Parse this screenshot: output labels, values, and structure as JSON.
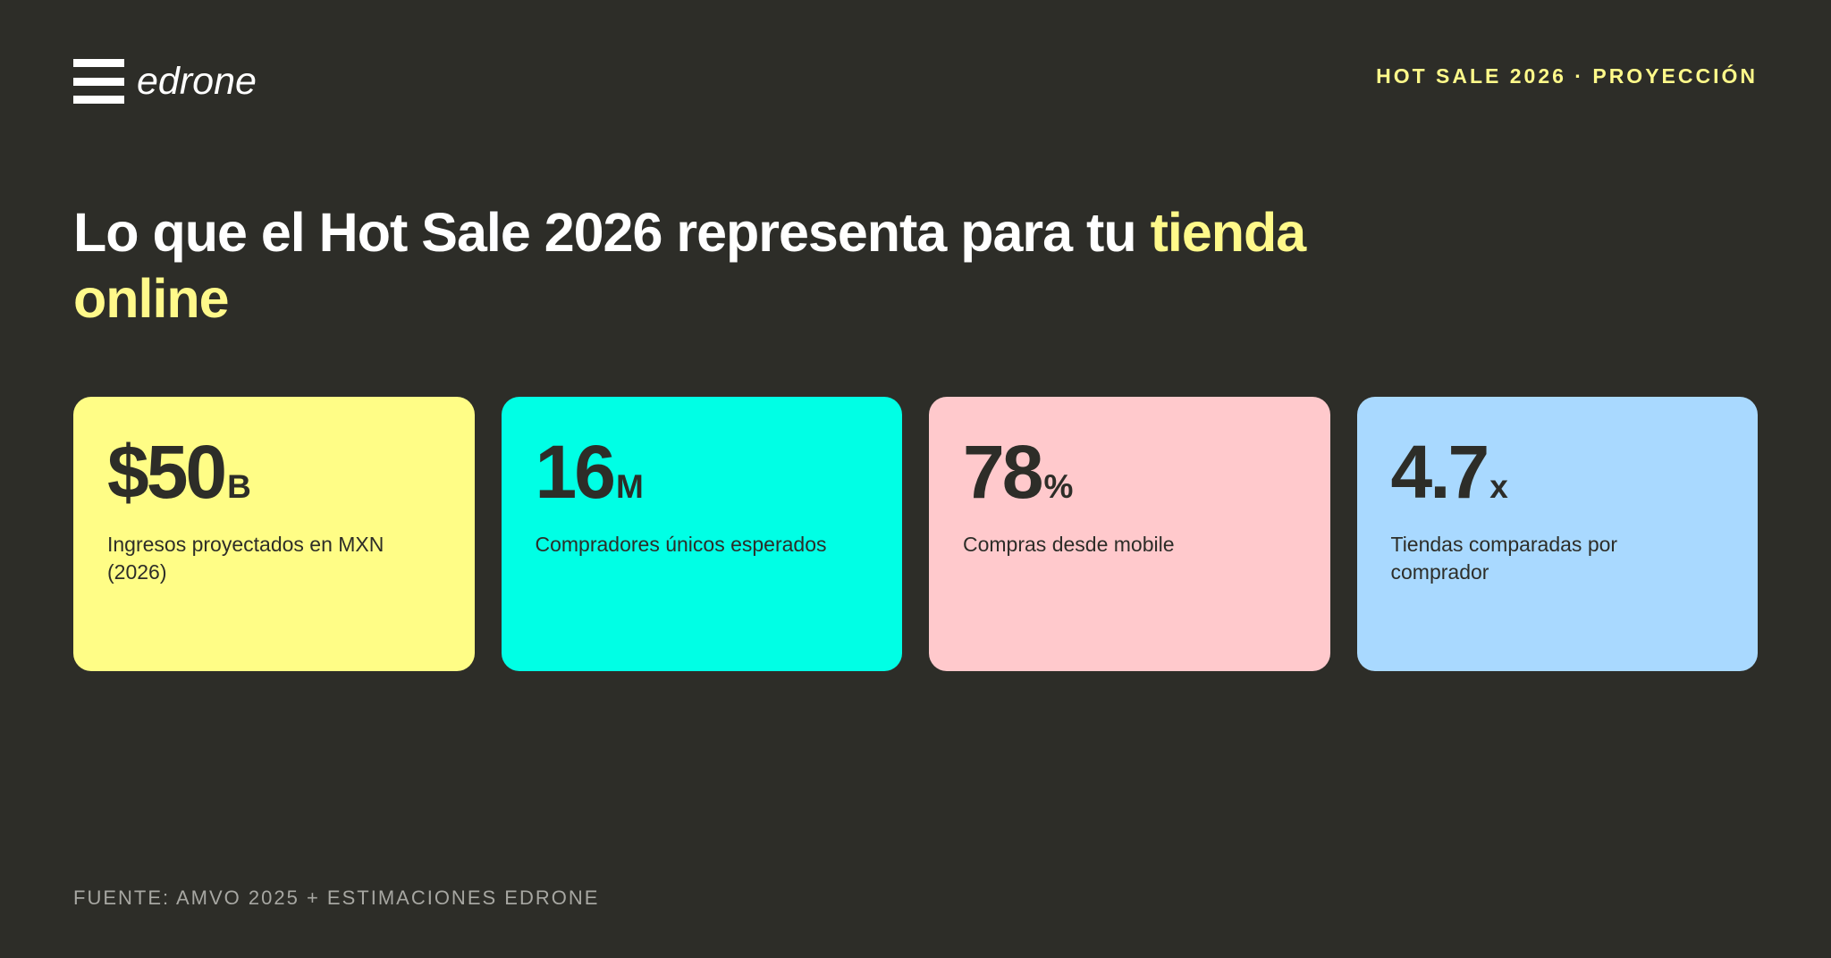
{
  "brand": {
    "name": "edrone",
    "icon": "hamburger-logo-icon"
  },
  "header": {
    "tag": "HOT SALE 2026 · PROYECCIÓN"
  },
  "headline": {
    "main": "Lo que el Hot Sale 2026 representa para tu",
    "accent": "tienda online"
  },
  "cards": [
    {
      "value": "$50",
      "unit": "B",
      "label": "Ingresos proyectados en MXN (2026)"
    },
    {
      "value": "16",
      "unit": "M",
      "label": "Compradores únicos esperados"
    },
    {
      "value": "78",
      "unit": "%",
      "label": "Compras desde mobile"
    },
    {
      "value": "4.7",
      "unit": "x",
      "label": "Tiendas comparadas por comprador"
    }
  ],
  "footer": {
    "source": "FUENTE: AMVO 2025 + ESTIMACIONES EDRONE"
  },
  "colors": {
    "background": "#2d2d28",
    "accent_yellow": "#fff98a",
    "card_yellow": "#fffd86",
    "card_cyan": "#00ffe5",
    "card_pink": "#ffc9cc",
    "card_blue": "#a9d9ff",
    "text_dark": "#2d2d28"
  }
}
